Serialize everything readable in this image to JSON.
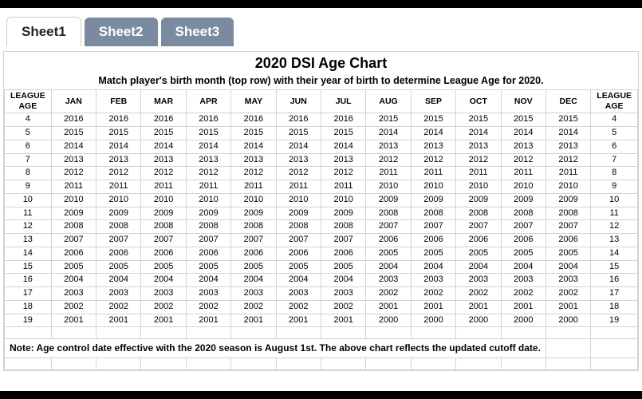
{
  "tabs": [
    {
      "label": "Sheet1",
      "active": true
    },
    {
      "label": "Sheet2",
      "active": false
    },
    {
      "label": "Sheet3",
      "active": false
    }
  ],
  "sheet": {
    "title": "2020 DSI Age Chart",
    "subtitle": "Match player's birth month (top row) with their year of birth to determine League Age for 2020.",
    "corner_top": "LEAGUE",
    "corner_bottom": "AGE",
    "months": [
      "JAN",
      "FEB",
      "MAR",
      "APR",
      "MAY",
      "JUN",
      "JUL",
      "AUG",
      "SEP",
      "OCT",
      "NOV",
      "DEC"
    ],
    "rows": [
      {
        "age": "4",
        "cells": [
          "2016",
          "2016",
          "2016",
          "2016",
          "2016",
          "2016",
          "2016",
          "2015",
          "2015",
          "2015",
          "2015",
          "2015"
        ]
      },
      {
        "age": "5",
        "cells": [
          "2015",
          "2015",
          "2015",
          "2015",
          "2015",
          "2015",
          "2015",
          "2014",
          "2014",
          "2014",
          "2014",
          "2014"
        ]
      },
      {
        "age": "6",
        "cells": [
          "2014",
          "2014",
          "2014",
          "2014",
          "2014",
          "2014",
          "2014",
          "2013",
          "2013",
          "2013",
          "2013",
          "2013"
        ]
      },
      {
        "age": "7",
        "cells": [
          "2013",
          "2013",
          "2013",
          "2013",
          "2013",
          "2013",
          "2013",
          "2012",
          "2012",
          "2012",
          "2012",
          "2012"
        ]
      },
      {
        "age": "8",
        "cells": [
          "2012",
          "2012",
          "2012",
          "2012",
          "2012",
          "2012",
          "2012",
          "2011",
          "2011",
          "2011",
          "2011",
          "2011"
        ]
      },
      {
        "age": "9",
        "cells": [
          "2011",
          "2011",
          "2011",
          "2011",
          "2011",
          "2011",
          "2011",
          "2010",
          "2010",
          "2010",
          "2010",
          "2010"
        ]
      },
      {
        "age": "10",
        "cells": [
          "2010",
          "2010",
          "2010",
          "2010",
          "2010",
          "2010",
          "2010",
          "2009",
          "2009",
          "2009",
          "2009",
          "2009"
        ]
      },
      {
        "age": "11",
        "cells": [
          "2009",
          "2009",
          "2009",
          "2009",
          "2009",
          "2009",
          "2009",
          "2008",
          "2008",
          "2008",
          "2008",
          "2008"
        ]
      },
      {
        "age": "12",
        "cells": [
          "2008",
          "2008",
          "2008",
          "2008",
          "2008",
          "2008",
          "2008",
          "2007",
          "2007",
          "2007",
          "2007",
          "2007"
        ]
      },
      {
        "age": "13",
        "cells": [
          "2007",
          "2007",
          "2007",
          "2007",
          "2007",
          "2007",
          "2007",
          "2006",
          "2006",
          "2006",
          "2006",
          "2006"
        ]
      },
      {
        "age": "14",
        "cells": [
          "2006",
          "2006",
          "2006",
          "2006",
          "2006",
          "2006",
          "2006",
          "2005",
          "2005",
          "2005",
          "2005",
          "2005"
        ]
      },
      {
        "age": "15",
        "cells": [
          "2005",
          "2005",
          "2005",
          "2005",
          "2005",
          "2005",
          "2005",
          "2004",
          "2004",
          "2004",
          "2004",
          "2004"
        ]
      },
      {
        "age": "16",
        "cells": [
          "2004",
          "2004",
          "2004",
          "2004",
          "2004",
          "2004",
          "2004",
          "2003",
          "2003",
          "2003",
          "2003",
          "2003"
        ]
      },
      {
        "age": "17",
        "cells": [
          "2003",
          "2003",
          "2003",
          "2003",
          "2003",
          "2003",
          "2003",
          "2002",
          "2002",
          "2002",
          "2002",
          "2002"
        ]
      },
      {
        "age": "18",
        "cells": [
          "2002",
          "2002",
          "2002",
          "2002",
          "2002",
          "2002",
          "2002",
          "2001",
          "2001",
          "2001",
          "2001",
          "2001"
        ]
      },
      {
        "age": "19",
        "cells": [
          "2001",
          "2001",
          "2001",
          "2001",
          "2001",
          "2001",
          "2001",
          "2000",
          "2000",
          "2000",
          "2000",
          "2000"
        ]
      }
    ],
    "note": "Note:  Age control date effective with the 2020 season is August 1st.  The above chart reflects the updated cutoff date.",
    "style": {
      "border_color": "#cfd3d8",
      "tab_inactive_bg": "#7a8aa0",
      "tab_active_bg": "#ffffff",
      "title_fontsize": 18,
      "subtitle_fontsize": 12.5,
      "cell_fontsize": 11,
      "header_fontsize": 10.5
    }
  }
}
